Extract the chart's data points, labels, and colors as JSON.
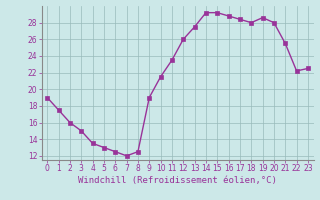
{
  "x": [
    0,
    1,
    2,
    3,
    4,
    5,
    6,
    7,
    8,
    9,
    10,
    11,
    12,
    13,
    14,
    15,
    16,
    17,
    18,
    19,
    20,
    21,
    22,
    23
  ],
  "y": [
    19,
    17.5,
    16,
    15,
    13.5,
    13,
    12.5,
    12,
    12.5,
    19,
    21.5,
    23.5,
    26,
    27.5,
    29.2,
    29.2,
    28.8,
    28.4,
    28.0,
    28.6,
    28.0,
    25.5,
    22.2,
    22.5
  ],
  "line_color": "#993399",
  "marker": "s",
  "markersize": 2.5,
  "linewidth": 1.0,
  "bg_color": "#cce8e8",
  "grid_color": "#99bbbb",
  "xlabel": "Windchill (Refroidissement éolien,°C)",
  "xlabel_color": "#993399",
  "xlabel_fontsize": 6.5,
  "tick_color": "#993399",
  "tick_fontsize": 5.5,
  "ylim": [
    11.5,
    30.0
  ],
  "yticks": [
    12,
    14,
    16,
    18,
    20,
    22,
    24,
    26,
    28
  ],
  "xticks": [
    0,
    1,
    2,
    3,
    4,
    5,
    6,
    7,
    8,
    9,
    10,
    11,
    12,
    13,
    14,
    15,
    16,
    17,
    18,
    19,
    20,
    21,
    22,
    23
  ],
  "spine_color": "#888888"
}
